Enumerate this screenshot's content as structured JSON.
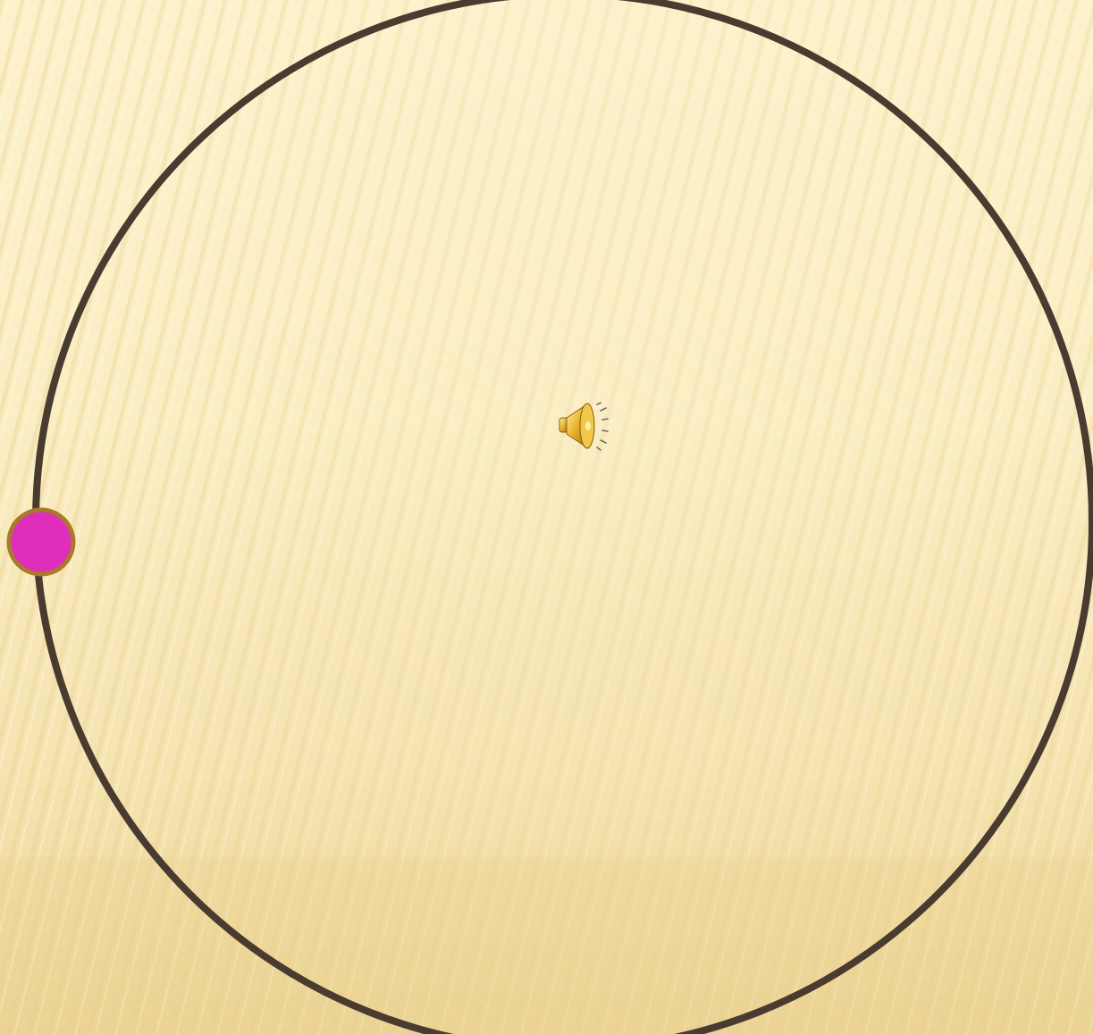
{
  "slide": {
    "background_color": "#fbeec4",
    "stripe_color": "#e6cf8e",
    "orbit_color": "#4a3b30",
    "planet_color": "#e02ebc",
    "planet_border_color": "#a87a2a"
  },
  "media": {
    "audio_icon": "speaker-icon"
  }
}
